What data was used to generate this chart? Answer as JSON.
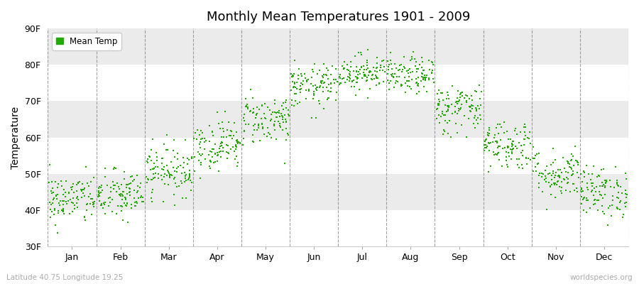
{
  "title": "Monthly Mean Temperatures 1901 - 2009",
  "ylabel": "Temperature",
  "xlabel_labels": [
    "Jan",
    "Feb",
    "Mar",
    "Apr",
    "May",
    "Jun",
    "Jul",
    "Aug",
    "Sep",
    "Oct",
    "Nov",
    "Dec"
  ],
  "ytick_labels": [
    "30F",
    "40F",
    "50F",
    "60F",
    "70F",
    "80F",
    "90F"
  ],
  "ytick_values": [
    30,
    40,
    50,
    60,
    70,
    80,
    90
  ],
  "ylim": [
    30,
    90
  ],
  "legend_label": "Mean Temp",
  "dot_color": "#22aa00",
  "bg_color": "#ffffff",
  "plot_bg_color": "#ffffff",
  "band_colors": [
    "#ffffff",
    "#ebebeb"
  ],
  "footer_left": "Latitude 40.75 Longitude 19.25",
  "footer_right": "worldspecies.org",
  "n_years": 109,
  "monthly_means": [
    43,
    44,
    51,
    58,
    65,
    74,
    78,
    77,
    68,
    58,
    50,
    45
  ],
  "monthly_stds": [
    3.5,
    3.5,
    3.5,
    3.5,
    3.5,
    3.0,
    2.5,
    2.5,
    3.5,
    3.5,
    3.5,
    3.5
  ],
  "seed": 42
}
